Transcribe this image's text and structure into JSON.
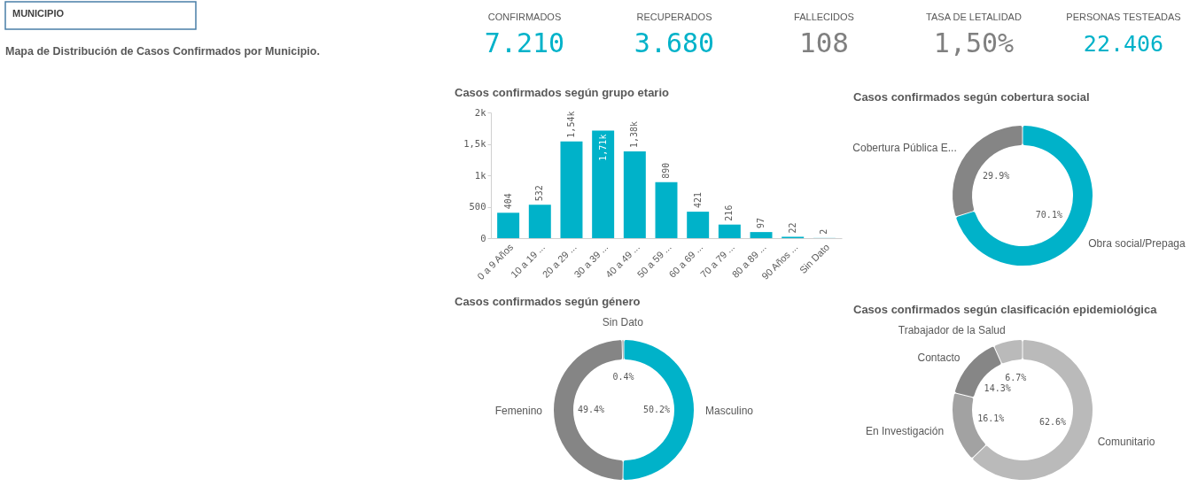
{
  "chart_data": [
    {
      "type": "other",
      "title": "Mapa de Distribución de Casos Confirmados por Municipio.",
      "annotations": [
        "MUNICIPIO"
      ]
    },
    {
      "type": "other",
      "categories": [
        "CONFIRMADOS",
        "RECUPERADOS",
        "FALLECIDOS",
        "TASA DE LETALIDAD",
        "PERSONAS TESTEADAS"
      ],
      "value_labels": [
        "7.210",
        "3.680",
        "108",
        "1,50%",
        "22.406"
      ],
      "colors": [
        "#00b2c9",
        "#00b2c9",
        "#808080",
        "#808080",
        "#00b2c9"
      ]
    },
    {
      "type": "bar",
      "title": "Casos confirmados según grupo etario",
      "categories": [
        "0 a 9 Años",
        "10 a 19 ...",
        "20 a 29 ...",
        "30 a 39 ...",
        "40 a 49 ...",
        "50 a 59 ...",
        "60 a 69 ...",
        "70 a 79 ...",
        "80 a 89 ...",
        "90 Años ...",
        "Sin Dato"
      ],
      "values": [
        404,
        532,
        1540,
        1710,
        1380,
        890,
        421,
        216,
        97,
        22,
        2
      ],
      "value_labels": [
        "404",
        "532",
        "1,54k",
        "1,71k",
        "1,38k",
        "890",
        "421",
        "216",
        "97",
        "22",
        "2"
      ],
      "color": "#00b2c9",
      "ylim": [
        0,
        2000
      ],
      "yticks": [
        0,
        500,
        {
          "value": 1000,
          "label": "1k"
        },
        {
          "value": 1500,
          "label": "1,5k"
        },
        {
          "value": 2000,
          "label": "2k"
        }
      ]
    },
    {
      "type": "donut",
      "title": "Casos confirmados según cobertura social",
      "categories": [
        "Obra social/Prepaga",
        "Cobertura Pública E..."
      ],
      "values": [
        70.1,
        29.9
      ],
      "value_labels": [
        "70.1%",
        "29.9%"
      ],
      "colors": [
        "#00b2c9",
        "#858585"
      ]
    },
    {
      "type": "donut",
      "title": "Casos confirmados según género",
      "categories": [
        "Masculino",
        "Femenino",
        "Sin Dato"
      ],
      "values": [
        50.2,
        49.4,
        0.4
      ],
      "value_labels": [
        "50.2%",
        "49.4%",
        "0.4%"
      ],
      "colors": [
        "#00b2c9",
        "#858585",
        "#858585"
      ]
    },
    {
      "type": "donut",
      "title": "Casos confirmados según clasificación epidemiológica",
      "categories": [
        "Comunitario",
        "En Investigación",
        "Contacto",
        "Trabajador de la Salud"
      ],
      "values": [
        62.6,
        16.1,
        14.3,
        6.7
      ],
      "value_labels": [
        "62.6%",
        "16.1%",
        "14.3%",
        "6.7%"
      ],
      "colors": [
        "#bababa",
        "#a2a2a2",
        "#868686",
        "#bababa"
      ]
    }
  ]
}
